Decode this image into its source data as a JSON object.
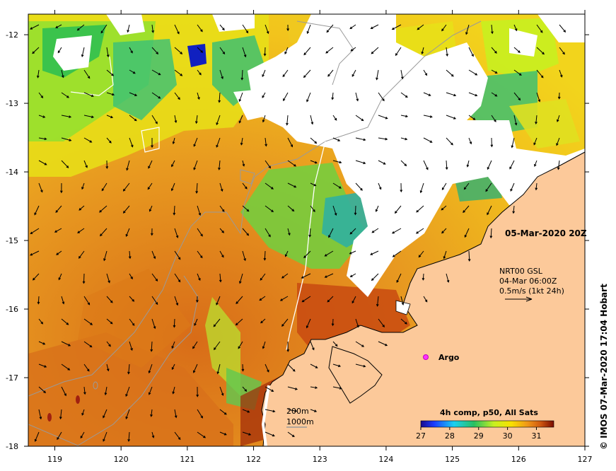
{
  "map": {
    "x_axis": {
      "min": 118.6,
      "max": 127.0,
      "ticks": [
        "119",
        "120",
        "121",
        "122",
        "123",
        "124",
        "125",
        "126",
        "127"
      ]
    },
    "y_axis": {
      "min": -18.0,
      "max": -11.7,
      "ticks": [
        "-12",
        "-13",
        "-14",
        "-15",
        "-16",
        "-17",
        "-18"
      ]
    },
    "colors": {
      "land": "#fcc99a",
      "cloud": "#ffffff",
      "coast": "#000000",
      "contour": "#9a9a9a",
      "argo": "#ff30ff"
    }
  },
  "annotations": {
    "date": "05-Mar-2020 20Z",
    "current_source": "NRT00 GSL",
    "current_time": "04-Mar 06:00Z",
    "current_scale": "0.5m/s (1kt 24h)",
    "argo_label": "Argo",
    "contour_200": "200m",
    "contour_1000": "1000m",
    "colorbar_title": "4h comp, p50, All Sats",
    "colorbar_ticks": [
      "27",
      "28",
      "29",
      "30",
      "31"
    ],
    "credit": "© IMOS 07-Mar-2020 17:04 Hobart"
  }
}
